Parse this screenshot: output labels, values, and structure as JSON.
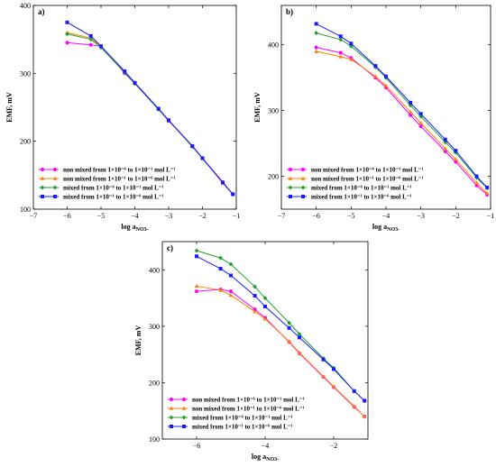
{
  "chart_data": [
    {
      "type": "line",
      "panel_label": "a)",
      "xlabel": "log aNO3-",
      "ylabel": "EMF, mV",
      "xlim": [
        -7,
        -1
      ],
      "ylim": [
        100,
        400
      ],
      "xticks": [
        -7,
        -6,
        -5,
        -4,
        -3,
        -2,
        -1
      ],
      "yticks": [
        100,
        200,
        300,
        400
      ],
      "legend_position": "bottom-left",
      "series": [
        {
          "name": "non mixed from 1×10⁻⁶ to 1×10⁻¹ mol L⁻¹",
          "color": "#ff00ff",
          "marker": "circle",
          "x": [
            -6,
            -5.3,
            -5,
            -4.3,
            -4,
            -3.3,
            -3,
            -2.3,
            -2,
            -1.4,
            -1.1
          ],
          "y": [
            345,
            342,
            340,
            300,
            285,
            247,
            230,
            193,
            175,
            140,
            122
          ]
        },
        {
          "name": "non mixed from 1×10⁻¹ to 1×10⁻⁶ mol L⁻¹",
          "color": "#ff8000",
          "marker": "triangle",
          "x": [
            -6,
            -5.3,
            -5,
            -4.3,
            -4,
            -3.3,
            -3,
            -2.3,
            -2,
            -1.4,
            -1.1
          ],
          "y": [
            360,
            352,
            340,
            302,
            286,
            247,
            231,
            193,
            175,
            139,
            122
          ]
        },
        {
          "name": "mixed from 1×10⁻⁶ to 1×10⁻¹ mol L⁻¹",
          "color": "#22a02a",
          "marker": "diamond",
          "x": [
            -6,
            -5.3,
            -5,
            -4.3,
            -4,
            -3.3,
            -3,
            -2.3,
            -2,
            -1.4,
            -1.1
          ],
          "y": [
            358,
            350,
            338,
            301,
            285,
            247,
            231,
            192,
            175,
            139,
            122
          ]
        },
        {
          "name": "mixed from 1×10⁻¹ to 1×10⁻⁶ mol L⁻¹",
          "color": "#1a1aff",
          "marker": "square",
          "x": [
            -6,
            -5.3,
            -5,
            -4.3,
            -4,
            -3.3,
            -3,
            -2.3,
            -2,
            -1.4,
            -1.1
          ],
          "y": [
            375,
            355,
            340,
            303,
            286,
            248,
            231,
            193,
            175,
            139,
            122
          ]
        }
      ]
    },
    {
      "type": "line",
      "panel_label": "b)",
      "xlabel": "log aNO3-",
      "ylabel": "EMF, mV",
      "xlim": [
        -7,
        -1
      ],
      "ylim": [
        150,
        460
      ],
      "xticks": [
        -7,
        -6,
        -5,
        -4,
        -3,
        -2,
        -1
      ],
      "yticks": [
        200,
        300,
        400
      ],
      "legend_position": "bottom-left",
      "series": [
        {
          "name": "non mixed from 1×10⁻⁶ to 1×10⁻¹ mol L⁻¹",
          "color": "#ff00ff",
          "marker": "circle",
          "x": [
            -6,
            -5.3,
            -5,
            -4.3,
            -4,
            -3.3,
            -3,
            -2.3,
            -2,
            -1.4,
            -1.1
          ],
          "y": [
            396,
            388,
            380,
            350,
            335,
            293,
            276,
            238,
            222,
            186,
            172
          ]
        },
        {
          "name": "non mixed from 1×10⁻¹ to 1×10⁻⁶ mol L⁻¹",
          "color": "#ff8000",
          "marker": "triangle",
          "x": [
            -6,
            -5.3,
            -5,
            -4.3,
            -4,
            -3.3,
            -3,
            -2.3,
            -2,
            -1.4,
            -1.1
          ],
          "y": [
            390,
            382,
            378,
            352,
            338,
            298,
            281,
            242,
            226,
            190,
            174
          ]
        },
        {
          "name": "mixed from 1×10⁻⁶ to 1×10⁻¹ mol L⁻¹",
          "color": "#22a02a",
          "marker": "diamond",
          "x": [
            -6,
            -5.3,
            -5,
            -4.3,
            -4,
            -3.3,
            -3,
            -2.3,
            -2,
            -1.4,
            -1.1
          ],
          "y": [
            418,
            408,
            398,
            366,
            350,
            308,
            291,
            252,
            236,
            198,
            182
          ]
        },
        {
          "name": "mixed from 1×10⁻¹ to 1×10⁻⁶ mol L⁻¹",
          "color": "#1a1aff",
          "marker": "square",
          "x": [
            -6,
            -5.3,
            -5,
            -4.3,
            -4,
            -3.3,
            -3,
            -2.3,
            -2,
            -1.4,
            -1.1
          ],
          "y": [
            432,
            413,
            402,
            368,
            352,
            312,
            295,
            256,
            239,
            200,
            183
          ]
        }
      ]
    },
    {
      "type": "line",
      "panel_label": "c)",
      "xlabel": "log aNO3-",
      "ylabel": "EMF, mV",
      "xlim": [
        -7,
        -1
      ],
      "ylim": [
        100,
        450
      ],
      "xticks": [
        -6,
        -4,
        -2
      ],
      "yticks": [
        100,
        200,
        300,
        400
      ],
      "legend_position": "bottom-left",
      "series": [
        {
          "name": "non mixed from 1×10⁻⁶ to 1×10⁻¹ mol L⁻¹",
          "color": "#ff00ff",
          "marker": "circle",
          "x": [
            -6,
            -5.3,
            -5,
            -4.3,
            -4,
            -3.3,
            -3,
            -2.3,
            -2,
            -1.4,
            -1.1
          ],
          "y": [
            362,
            365,
            362,
            330,
            315,
            272,
            252,
            210,
            192,
            157,
            140
          ]
        },
        {
          "name": "non mixed from 1×10⁻¹ to 1×10⁻⁶ mol L⁻¹",
          "color": "#ff8000",
          "marker": "triangle",
          "x": [
            -6,
            -5.3,
            -5,
            -4.3,
            -4,
            -3.3,
            -3,
            -2.3,
            -2,
            -1.4,
            -1.1
          ],
          "y": [
            371,
            364,
            355,
            326,
            313,
            273,
            253,
            211,
            193,
            158,
            140
          ]
        },
        {
          "name": "mixed from 1×10⁻⁶ to 1×10⁻¹ mol L⁻¹",
          "color": "#22a02a",
          "marker": "diamond",
          "x": [
            -6,
            -5.3,
            -5,
            -4.3,
            -4,
            -3.3,
            -3,
            -2.3,
            -2,
            -1.4,
            -1.1
          ],
          "y": [
            434,
            421,
            410,
            370,
            350,
            306,
            286,
            243,
            226,
            185,
            168
          ]
        },
        {
          "name": "mixed from 1×10⁻¹ to 1×10⁻⁶ mol L⁻¹",
          "color": "#1a1aff",
          "marker": "square",
          "x": [
            -6,
            -5.3,
            -5,
            -4.3,
            -4,
            -3.3,
            -3,
            -2.3,
            -2,
            -1.4,
            -1.1
          ],
          "y": [
            424,
            402,
            390,
            354,
            335,
            297,
            280,
            241,
            224,
            185,
            168
          ]
        }
      ]
    }
  ]
}
